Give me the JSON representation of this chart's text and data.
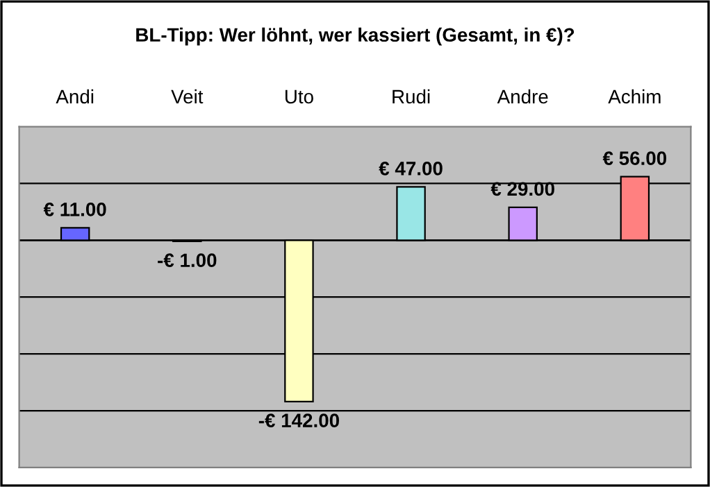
{
  "chart_data": {
    "type": "bar",
    "title": "BL-Tipp: Wer löhnt, wer kassiert (Gesamt, in €)?",
    "categories": [
      "Andi",
      "Veit",
      "Uto",
      "Rudi",
      "Andre",
      "Achim"
    ],
    "values": [
      11,
      -1,
      -142,
      47,
      29,
      56
    ],
    "value_labels": [
      "€ 11.00",
      "-€ 1.00",
      "-€ 142.00",
      "€ 47.00",
      "€ 29.00",
      "€ 56.00"
    ],
    "colors": [
      "#6666ff",
      "#333366",
      "#ffffc0",
      "#99e6e6",
      "#cc99ff",
      "#ff8080"
    ],
    "ylim": [
      -200,
      100
    ],
    "yticks": [
      {
        "value": -150,
        "label": null
      },
      {
        "value": -100,
        "label": null
      },
      {
        "value": -50,
        "label": null
      },
      {
        "value": 0,
        "label": null
      },
      {
        "value": 50,
        "label": null
      }
    ],
    "grid": "y",
    "tick_labels": "x"
  }
}
